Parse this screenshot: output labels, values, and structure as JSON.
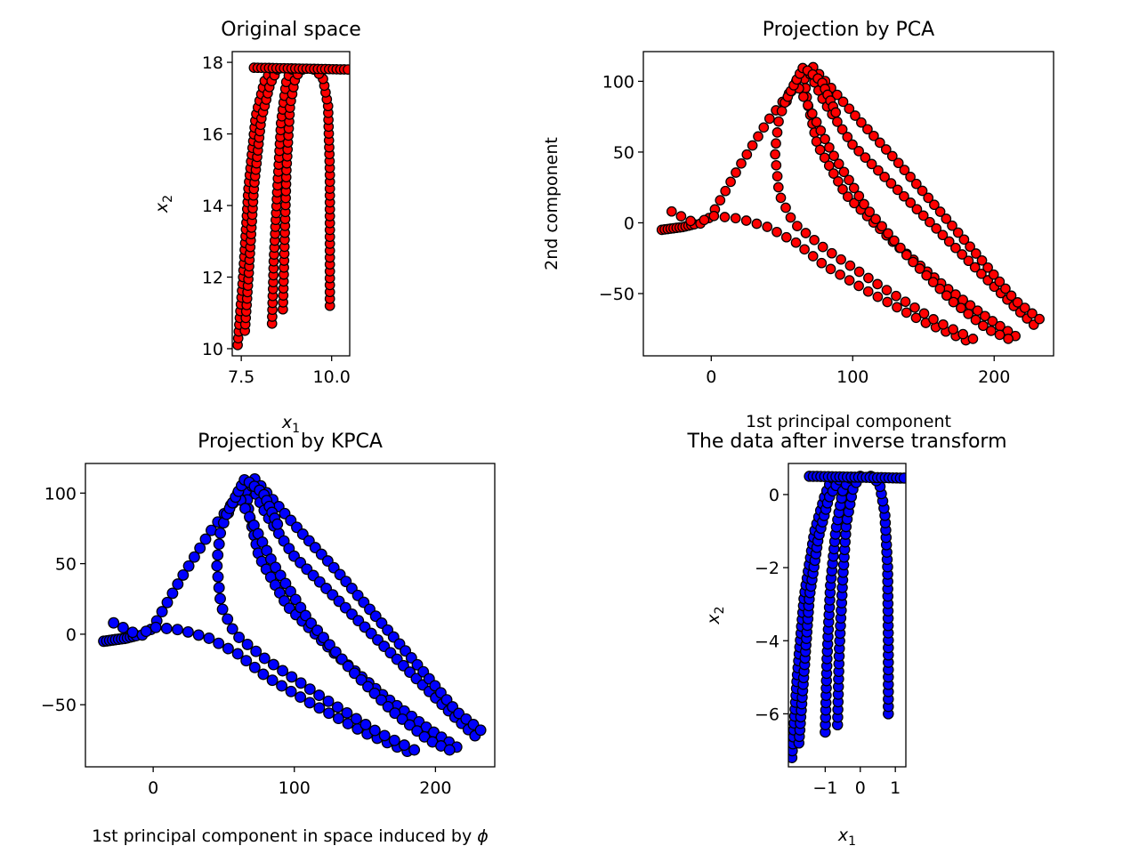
{
  "figure": {
    "background": "#ffffff",
    "point_edge": "#000000"
  },
  "chart_data": [
    {
      "type": "scatter",
      "title": "Original space",
      "xlabel": "x",
      "xlabel_sub": "1",
      "ylabel": "x",
      "ylabel_sub": "2",
      "xlim": [
        7.25,
        10.5
      ],
      "ylim": [
        9.8,
        18.3
      ],
      "xticks": [
        {
          "v": 7.5,
          "label": "7.5"
        },
        {
          "v": 10.0,
          "label": "10.0"
        }
      ],
      "yticks": [
        {
          "v": 10,
          "label": "10"
        },
        {
          "v": 12,
          "label": "12"
        },
        {
          "v": 14,
          "label": "14"
        },
        {
          "v": 16,
          "label": "16"
        },
        {
          "v": 18,
          "label": "18"
        }
      ],
      "color": "#ff0000",
      "point_size": 5.2,
      "series": [
        {
          "kind": "polyline",
          "points": [
            [
              7.4,
              10.1
            ],
            [
              7.55,
              12
            ],
            [
              7.7,
              14.5
            ],
            [
              7.9,
              16.5
            ],
            [
              8.15,
              17.5
            ],
            [
              8.35,
              17.8
            ]
          ],
          "n": 42
        },
        {
          "kind": "polyline",
          "points": [
            [
              7.6,
              10.5
            ],
            [
              7.7,
              12
            ],
            [
              7.85,
              14.5
            ],
            [
              8.05,
              16.4
            ],
            [
              8.3,
              17.4
            ],
            [
              8.5,
              17.8
            ]
          ],
          "n": 42
        },
        {
          "kind": "polyline",
          "points": [
            [
              8.35,
              10.7
            ],
            [
              8.4,
              12.5
            ],
            [
              8.5,
              14.5
            ],
            [
              8.6,
              16.3
            ],
            [
              8.75,
              17.5
            ],
            [
              8.9,
              17.8
            ]
          ],
          "n": 38
        },
        {
          "kind": "polyline",
          "points": [
            [
              8.65,
              11.1
            ],
            [
              8.7,
              13
            ],
            [
              8.75,
              15
            ],
            [
              8.85,
              16.8
            ],
            [
              9.0,
              17.6
            ],
            [
              9.2,
              17.8
            ]
          ],
          "n": 36
        },
        {
          "kind": "polyline",
          "points": [
            [
              9.95,
              11.2
            ],
            [
              9.95,
              13
            ],
            [
              9.95,
              15
            ],
            [
              9.9,
              16.8
            ],
            [
              9.75,
              17.6
            ],
            [
              9.5,
              17.8
            ]
          ],
          "n": 36
        },
        {
          "kind": "polyline",
          "points": [
            [
              7.85,
              17.85
            ],
            [
              10.45,
              17.8
            ]
          ],
          "n": 26
        }
      ]
    },
    {
      "type": "scatter",
      "title": "Projection by PCA",
      "xlabel": "1st principal component",
      "ylabel": "2nd component",
      "xlim": [
        -48,
        242
      ],
      "ylim": [
        -94,
        121
      ],
      "xticks": [
        {
          "v": 0,
          "label": "0"
        },
        {
          "v": 100,
          "label": "100"
        },
        {
          "v": 200,
          "label": "200"
        }
      ],
      "yticks": [
        {
          "v": -50,
          "label": "−50"
        },
        {
          "v": 0,
          "label": "0"
        },
        {
          "v": 50,
          "label": "50"
        },
        {
          "v": 100,
          "label": "100"
        }
      ],
      "color": "#ff0000",
      "point_size": 5.2,
      "series": [
        {
          "kind": "polyline",
          "points": [
            [
              -35,
              -5
            ],
            [
              -28,
              -4
            ],
            [
              -20,
              -3
            ],
            [
              -12,
              -1
            ]
          ],
          "n": 12
        },
        {
          "kind": "polyline",
          "points": [
            [
              -28,
              8
            ],
            [
              -18,
              3
            ],
            [
              -10,
              -1
            ],
            [
              -5,
              0
            ],
            [
              0,
              5
            ],
            [
              20,
              40
            ],
            [
              40,
              72
            ],
            [
              60,
              98
            ],
            [
              70,
              108
            ]
          ],
          "n": 22
        },
        {
          "kind": "polyline",
          "points": [
            [
              -5,
              2
            ],
            [
              0,
              5
            ],
            [
              20,
              3
            ],
            [
              40,
              -3
            ],
            [
              60,
              -14
            ],
            [
              80,
              -30
            ],
            [
              110,
              -48
            ],
            [
              150,
              -70
            ],
            [
              180,
              -83
            ]
          ],
          "n": 28
        },
        {
          "kind": "polyline",
          "points": [
            [
              60,
              100
            ],
            [
              48,
              75
            ],
            [
              45,
              50
            ],
            [
              48,
              20
            ],
            [
              58,
              0
            ],
            [
              80,
              -18
            ],
            [
              120,
              -45
            ],
            [
              160,
              -70
            ],
            [
              185,
              -82
            ]
          ],
          "n": 34
        },
        {
          "kind": "polyline",
          "points": [
            [
              65,
              108
            ],
            [
              68,
              85
            ],
            [
              75,
              55
            ],
            [
              95,
              20
            ],
            [
              130,
              -15
            ],
            [
              165,
              -45
            ],
            [
              195,
              -67
            ],
            [
              215,
              -80
            ]
          ],
          "n": 40
        },
        {
          "kind": "polyline",
          "points": [
            [
              70,
              105
            ],
            [
              80,
              85
            ],
            [
              100,
              55
            ],
            [
              130,
              25
            ],
            [
              160,
              -5
            ],
            [
              190,
              -35
            ],
            [
              215,
              -60
            ],
            [
              228,
              -72
            ]
          ],
          "n": 38
        },
        {
          "kind": "polyline",
          "points": [
            [
              72,
              110
            ],
            [
              85,
              95
            ],
            [
              105,
              72
            ],
            [
              130,
              45
            ],
            [
              160,
              10
            ],
            [
              190,
              -25
            ],
            [
              215,
              -55
            ],
            [
              232,
              -68
            ]
          ],
          "n": 38
        },
        {
          "kind": "polyline",
          "points": [
            [
              62,
              95
            ],
            [
              70,
              80
            ],
            [
              85,
              50
            ],
            [
              110,
              10
            ],
            [
              140,
              -25
            ],
            [
              170,
              -55
            ],
            [
              195,
              -75
            ],
            [
              210,
              -82
            ]
          ],
          "n": 36
        },
        {
          "kind": "polyline",
          "points": [
            [
              52,
              85
            ],
            [
              65,
              110
            ],
            [
              78,
              100
            ],
            [
              88,
              78
            ]
          ],
          "n": 16
        }
      ]
    },
    {
      "type": "scatter",
      "title": "Projection by KPCA",
      "xlabel": "1st principal component in space induced by ",
      "xlabel_phi": "ϕ",
      "ylabel": "",
      "xlim": [
        -48,
        242
      ],
      "ylim": [
        -94,
        121
      ],
      "xticks": [
        {
          "v": 0,
          "label": "0"
        },
        {
          "v": 100,
          "label": "100"
        },
        {
          "v": 200,
          "label": "200"
        }
      ],
      "yticks": [
        {
          "v": -50,
          "label": "−50"
        },
        {
          "v": 0,
          "label": "0"
        },
        {
          "v": 50,
          "label": "50"
        },
        {
          "v": 100,
          "label": "100"
        }
      ],
      "color": "#0000ff",
      "point_size": 5.8,
      "series": [
        {
          "kind": "polyline",
          "points": [
            [
              -35,
              -5
            ],
            [
              -28,
              -4
            ],
            [
              -20,
              -3
            ],
            [
              -12,
              -1
            ]
          ],
          "n": 12
        },
        {
          "kind": "polyline",
          "points": [
            [
              -28,
              8
            ],
            [
              -18,
              3
            ],
            [
              -10,
              -1
            ],
            [
              -5,
              0
            ],
            [
              0,
              5
            ],
            [
              20,
              40
            ],
            [
              40,
              72
            ],
            [
              60,
              98
            ],
            [
              70,
              108
            ]
          ],
          "n": 22
        },
        {
          "kind": "polyline",
          "points": [
            [
              -5,
              2
            ],
            [
              0,
              5
            ],
            [
              20,
              3
            ],
            [
              40,
              -3
            ],
            [
              60,
              -14
            ],
            [
              80,
              -30
            ],
            [
              110,
              -48
            ],
            [
              150,
              -70
            ],
            [
              180,
              -83
            ]
          ],
          "n": 28
        },
        {
          "kind": "polyline",
          "points": [
            [
              60,
              100
            ],
            [
              48,
              75
            ],
            [
              45,
              50
            ],
            [
              48,
              20
            ],
            [
              58,
              0
            ],
            [
              80,
              -18
            ],
            [
              120,
              -45
            ],
            [
              160,
              -70
            ],
            [
              185,
              -82
            ]
          ],
          "n": 34
        },
        {
          "kind": "polyline",
          "points": [
            [
              65,
              108
            ],
            [
              68,
              85
            ],
            [
              75,
              55
            ],
            [
              95,
              20
            ],
            [
              130,
              -15
            ],
            [
              165,
              -45
            ],
            [
              195,
              -67
            ],
            [
              215,
              -80
            ]
          ],
          "n": 40
        },
        {
          "kind": "polyline",
          "points": [
            [
              70,
              105
            ],
            [
              80,
              85
            ],
            [
              100,
              55
            ],
            [
              130,
              25
            ],
            [
              160,
              -5
            ],
            [
              190,
              -35
            ],
            [
              215,
              -60
            ],
            [
              228,
              -72
            ]
          ],
          "n": 38
        },
        {
          "kind": "polyline",
          "points": [
            [
              72,
              110
            ],
            [
              85,
              95
            ],
            [
              105,
              72
            ],
            [
              130,
              45
            ],
            [
              160,
              10
            ],
            [
              190,
              -25
            ],
            [
              215,
              -55
            ],
            [
              232,
              -68
            ]
          ],
          "n": 38
        },
        {
          "kind": "polyline",
          "points": [
            [
              62,
              95
            ],
            [
              70,
              80
            ],
            [
              85,
              50
            ],
            [
              110,
              10
            ],
            [
              140,
              -25
            ],
            [
              170,
              -55
            ],
            [
              195,
              -75
            ],
            [
              210,
              -82
            ]
          ],
          "n": 36
        },
        {
          "kind": "polyline",
          "points": [
            [
              52,
              85
            ],
            [
              65,
              110
            ],
            [
              78,
              100
            ],
            [
              88,
              78
            ]
          ],
          "n": 16
        }
      ]
    },
    {
      "type": "scatter",
      "title": "The data after inverse transform",
      "xlabel": "x",
      "xlabel_sub": "1",
      "ylabel": "x",
      "ylabel_sub": "2",
      "xlim": [
        -2.05,
        1.3
      ],
      "ylim": [
        -7.45,
        0.85
      ],
      "xticks": [
        {
          "v": -1,
          "label": "−1"
        },
        {
          "v": 0,
          "label": "0"
        },
        {
          "v": 1,
          "label": "1"
        }
      ],
      "yticks": [
        {
          "v": -6,
          "label": "−6"
        },
        {
          "v": -4,
          "label": "−4"
        },
        {
          "v": -2,
          "label": "−2"
        },
        {
          "v": 0,
          "label": "0"
        }
      ],
      "color": "#0000ff",
      "point_size": 5.6,
      "series": [
        {
          "kind": "polyline",
          "points": [
            [
              -1.95,
              -7.2
            ],
            [
              -1.8,
              -5
            ],
            [
              -1.6,
              -2.8
            ],
            [
              -1.3,
              -1
            ],
            [
              -1.0,
              0
            ],
            [
              -0.8,
              0.45
            ]
          ],
          "n": 42
        },
        {
          "kind": "polyline",
          "points": [
            [
              -1.75,
              -6.8
            ],
            [
              -1.6,
              -4.8
            ],
            [
              -1.45,
              -2.8
            ],
            [
              -1.2,
              -1.2
            ],
            [
              -0.9,
              -0.1
            ],
            [
              -0.6,
              0.4
            ]
          ],
          "n": 42
        },
        {
          "kind": "polyline",
          "points": [
            [
              -1.0,
              -6.5
            ],
            [
              -0.95,
              -4.5
            ],
            [
              -0.85,
              -2.5
            ],
            [
              -0.7,
              -1
            ],
            [
              -0.5,
              0.1
            ],
            [
              -0.3,
              0.45
            ]
          ],
          "n": 36
        },
        {
          "kind": "polyline",
          "points": [
            [
              -0.65,
              -6.3
            ],
            [
              -0.6,
              -4.3
            ],
            [
              -0.5,
              -2.3
            ],
            [
              -0.4,
              -0.8
            ],
            [
              -0.2,
              0.2
            ],
            [
              0.0,
              0.5
            ]
          ],
          "n": 34
        },
        {
          "kind": "polyline",
          "points": [
            [
              0.8,
              -6
            ],
            [
              0.8,
              -4
            ],
            [
              0.78,
              -2
            ],
            [
              0.7,
              -0.5
            ],
            [
              0.55,
              0.3
            ],
            [
              0.3,
              0.5
            ]
          ],
          "n": 34
        },
        {
          "kind": "polyline",
          "points": [
            [
              -1.45,
              0.5
            ],
            [
              1.25,
              0.45
            ]
          ],
          "n": 26
        }
      ]
    }
  ]
}
